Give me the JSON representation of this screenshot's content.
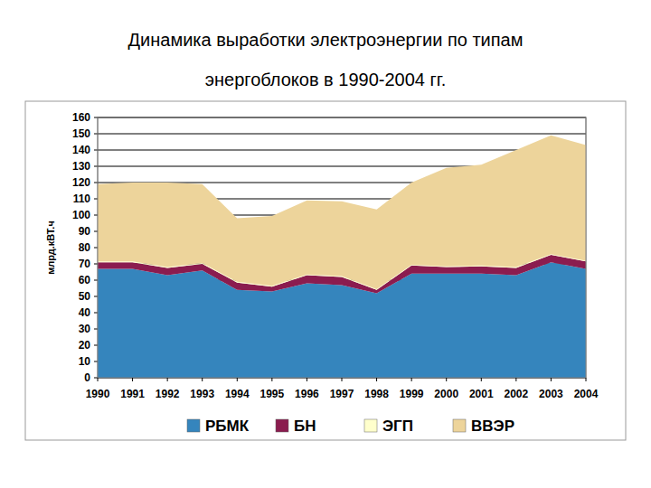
{
  "chart_data": {
    "type": "area",
    "stacked": true,
    "title": "Динамика выработки электроэнергии по типам энергоблоков в 1990-2004 гг.",
    "y_label": "млрд.кВТ.ч",
    "categories": [
      "1990",
      "1991",
      "1992",
      "1993",
      "1994",
      "1995",
      "1996",
      "1997",
      "1998",
      "1999",
      "2000",
      "2001",
      "2002",
      "2003",
      "2004"
    ],
    "ylim": [
      0,
      160
    ],
    "yticks": [
      0,
      10,
      20,
      30,
      40,
      50,
      60,
      70,
      80,
      90,
      100,
      110,
      120,
      130,
      140,
      150,
      160
    ],
    "grid": true,
    "legend": "bottom",
    "series": [
      {
        "name": "РБМК",
        "color": "#3585bd",
        "values": [
          67,
          67,
          63,
          66,
          54,
          53,
          58,
          57,
          52,
          64,
          64,
          64,
          63,
          71,
          67
        ]
      },
      {
        "name": "БН",
        "color": "#8b1c4f",
        "values": [
          4,
          4,
          4.5,
          4,
          4.5,
          3,
          5,
          5,
          2,
          5,
          4,
          4.5,
          4.5,
          4.5,
          4.5
        ]
      },
      {
        "name": "ЭГП",
        "color": "#ffffcc",
        "values": [
          0.5,
          0.5,
          0.5,
          0.5,
          0.5,
          0.5,
          0.5,
          0.5,
          0.5,
          0.5,
          0.5,
          0.5,
          0.5,
          0.5,
          0.5
        ]
      },
      {
        "name": "ВВЭР",
        "color": "#edd49b",
        "values": [
          47.5,
          48.5,
          52,
          48.5,
          39,
          43,
          45.5,
          46,
          49,
          50.5,
          60.5,
          62,
          72,
          73,
          71
        ]
      }
    ]
  }
}
